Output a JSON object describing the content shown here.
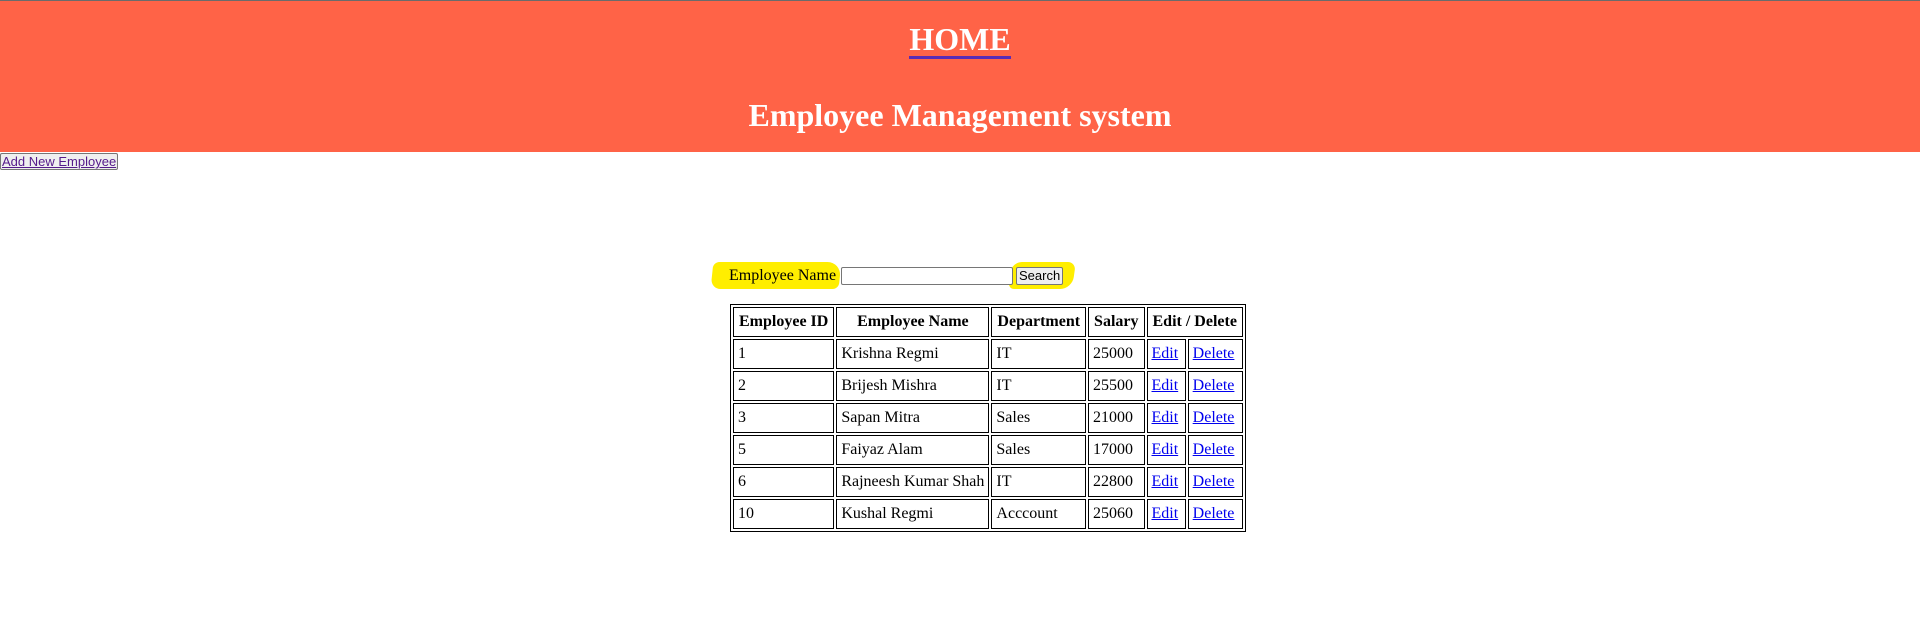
{
  "header": {
    "home_link": "HOME",
    "title": "Employee Management system",
    "background_color": "#ff6347"
  },
  "actions": {
    "add_new_employee": "Add New Employee"
  },
  "search": {
    "label": "Employee Name",
    "value": "",
    "button": "Search",
    "highlight_color": "#ffee00"
  },
  "table": {
    "columns": [
      "Employee ID",
      "Employee Name",
      "Department",
      "Salary",
      "Edit / Delete"
    ],
    "rows": [
      {
        "id": "1",
        "name": "Krishna Regmi",
        "department": "IT",
        "salary": "25000",
        "edit": "Edit",
        "delete": "Delete"
      },
      {
        "id": "2",
        "name": "Brijesh Mishra",
        "department": "IT",
        "salary": "25500",
        "edit": "Edit",
        "delete": "Delete"
      },
      {
        "id": "3",
        "name": "Sapan Mitra",
        "department": "Sales",
        "salary": "21000",
        "edit": "Edit",
        "delete": "Delete"
      },
      {
        "id": "5",
        "name": "Faiyaz Alam",
        "department": "Sales",
        "salary": "17000",
        "edit": "Edit",
        "delete": "Delete"
      },
      {
        "id": "6",
        "name": "Rajneesh Kumar Shah",
        "department": "IT",
        "salary": "22800",
        "edit": "Edit",
        "delete": "Delete"
      },
      {
        "id": "10",
        "name": "Kushal Regmi",
        "department": "Acccount",
        "salary": "25060",
        "edit": "Edit",
        "delete": "Delete"
      }
    ]
  }
}
